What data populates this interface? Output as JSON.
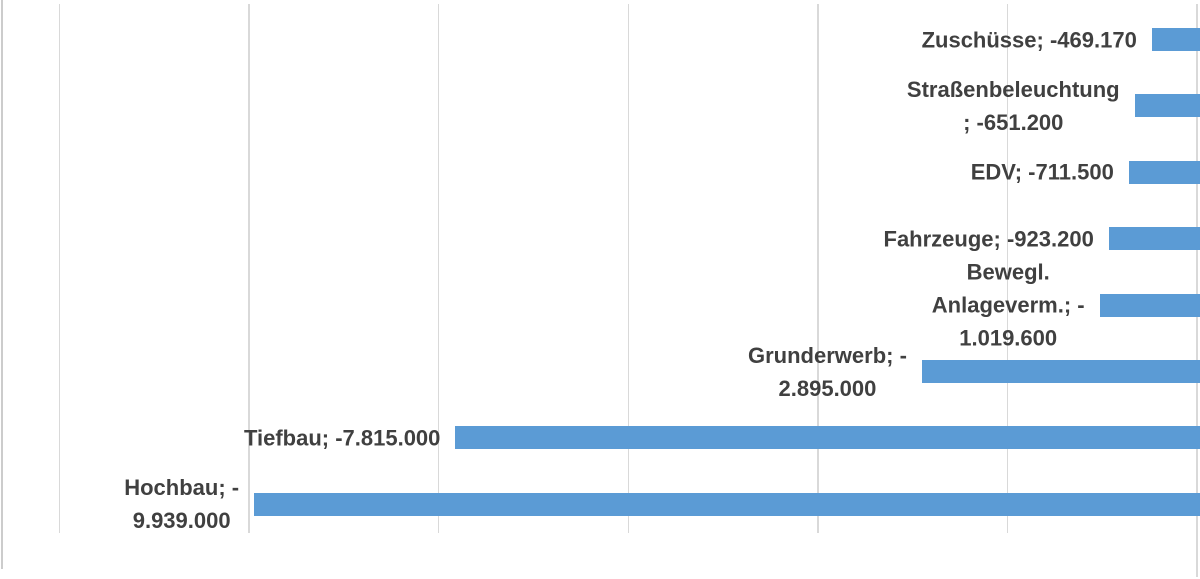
{
  "chart_data": {
    "type": "bar",
    "orientation": "horizontal",
    "title": "",
    "xlabel": "",
    "ylabel": "",
    "legend_position": "none",
    "grid": "vertical-major",
    "axis": {
      "min": -12000000,
      "max": 0,
      "major_unit": 2000000,
      "tick_labels_visible": false
    },
    "categories": [
      "Zuschüsse",
      "Straßenbeleuchtung",
      "EDV",
      "Fahrzeuge",
      "Bewegl. Anlageverm.",
      "Grunderwerb",
      "Tiefbau",
      "Hochbau"
    ],
    "values": [
      -469170,
      -651200,
      -711500,
      -923200,
      -1019600,
      -2895000,
      -7815000,
      -9939000
    ],
    "data_labels": [
      [
        "Zuschüsse; -469.170"
      ],
      [
        "Straßenbeleuchtung",
        "; -651.200"
      ],
      [
        "EDV; -711.500"
      ],
      [
        "Fahrzeuge; -923.200"
      ],
      [
        "Bewegl.",
        "Anlageverm.; -",
        "1.019.600"
      ],
      [
        "Grunderwerb; -",
        "2.895.000"
      ],
      [
        "Tiefbau; -7.815.000"
      ],
      [
        "Hochbau; -",
        "9.939.000"
      ]
    ],
    "colors": {
      "bar": "#5B9BD5",
      "label_text": "#404040",
      "gridline": "#D9D9D9",
      "chart_border": "#CCCCCC",
      "background": "#FFFFFF"
    }
  }
}
